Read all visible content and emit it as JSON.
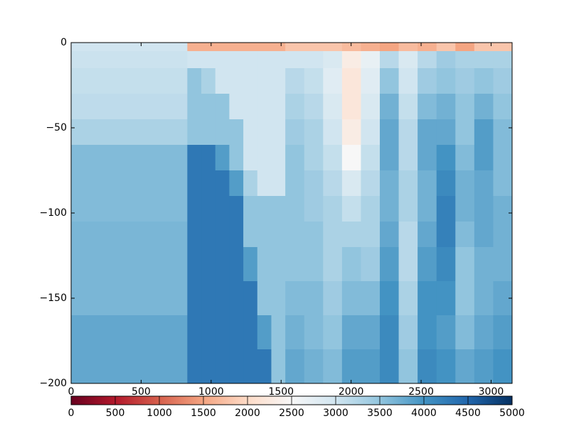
{
  "chart_data": {
    "type": "heatmap",
    "x": [
      0,
      830,
      930,
      1030,
      1130,
      1230,
      1330,
      1430,
      1530,
      1665,
      1800,
      1935,
      2070,
      2205,
      2340,
      2475,
      2610,
      2745,
      2880,
      3015,
      3150
    ],
    "y": [
      0,
      -5,
      -15,
      -30,
      -45,
      -60,
      -75,
      -90,
      -105,
      -120,
      -140,
      -160,
      -180,
      -200
    ],
    "values": [
      [
        3000,
        1600,
        1600,
        1600,
        1600,
        1600,
        1600,
        1600,
        1800,
        1800,
        1800,
        1700,
        1600,
        1500,
        1700,
        1600,
        1800,
        1500,
        1800,
        1800
      ],
      [
        3050,
        3000,
        3000,
        3000,
        3000,
        3000,
        3000,
        3000,
        3000,
        3000,
        2900,
        2300,
        2700,
        3200,
        2900,
        3200,
        3400,
        3300,
        3300,
        3300
      ],
      [
        3100,
        3500,
        3300,
        3000,
        3000,
        3000,
        3000,
        3000,
        3200,
        3100,
        2800,
        2200,
        2800,
        3500,
        3000,
        3400,
        3500,
        3400,
        3500,
        3400
      ],
      [
        3150,
        3500,
        3500,
        3500,
        3000,
        3000,
        3000,
        3000,
        3300,
        3200,
        2900,
        2200,
        2900,
        3700,
        3100,
        3600,
        3700,
        3500,
        3700,
        3500
      ],
      [
        3300,
        3500,
        3500,
        3500,
        3500,
        3000,
        3000,
        3000,
        3400,
        3300,
        3000,
        2300,
        3000,
        3800,
        3200,
        3800,
        3800,
        3500,
        3900,
        3600
      ],
      [
        3600,
        4300,
        4300,
        3900,
        3500,
        3000,
        3000,
        3000,
        3500,
        3300,
        3100,
        2500,
        3100,
        3800,
        3200,
        3800,
        4000,
        3600,
        3900,
        3600
      ],
      [
        3600,
        4300,
        4300,
        4300,
        3900,
        3300,
        3000,
        3000,
        3500,
        3400,
        3200,
        2900,
        3200,
        3700,
        3300,
        3700,
        4100,
        3700,
        3800,
        3600
      ],
      [
        3600,
        4300,
        4300,
        4300,
        4300,
        3500,
        3500,
        3500,
        3500,
        3400,
        3300,
        3100,
        3300,
        3700,
        3300,
        3700,
        4200,
        3700,
        3800,
        3700
      ],
      [
        3650,
        4300,
        4300,
        4300,
        4300,
        3500,
        3500,
        3500,
        3500,
        3500,
        3300,
        3300,
        3300,
        3800,
        3200,
        3800,
        4200,
        3600,
        3800,
        3700
      ],
      [
        3650,
        4300,
        4300,
        4300,
        4300,
        3900,
        3500,
        3500,
        3500,
        3500,
        3300,
        3500,
        3400,
        3900,
        3200,
        3900,
        4100,
        3500,
        3700,
        3700
      ],
      [
        3650,
        4300,
        4300,
        4300,
        4300,
        4300,
        3500,
        3500,
        3600,
        3600,
        3400,
        3600,
        3600,
        4000,
        3300,
        4000,
        4000,
        3500,
        3700,
        3800
      ],
      [
        3800,
        4300,
        4300,
        4300,
        4300,
        4300,
        3900,
        3500,
        3700,
        3600,
        3500,
        3800,
        3800,
        4100,
        3400,
        4000,
        3900,
        3600,
        3800,
        3900
      ],
      [
        3800,
        4300,
        4300,
        4300,
        4300,
        4300,
        4300,
        3500,
        3800,
        3700,
        3600,
        3900,
        3900,
        4100,
        3500,
        4100,
        4000,
        3800,
        3900,
        4000
      ]
    ],
    "xlim": [
      0,
      3150
    ],
    "xticks": [
      0,
      500,
      1000,
      1500,
      2000,
      2500,
      3000
    ],
    "ylim": [
      -200,
      0
    ],
    "yticks": [
      {
        "value": 0,
        "label": "0"
      },
      {
        "value": -50,
        "label": "−50"
      },
      {
        "value": -100,
        "label": "−100"
      },
      {
        "value": -150,
        "label": "−150"
      },
      {
        "value": -200,
        "label": "−200"
      }
    ],
    "colormap": [
      "#67001f",
      "#b2182b",
      "#d6604d",
      "#f4a582",
      "#fddbc7",
      "#f7f7f7",
      "#d1e5f0",
      "#92c5de",
      "#4393c3",
      "#2166ac",
      "#053061"
    ],
    "colorbar": {
      "lim": [
        0,
        5000
      ],
      "ticks": [
        0,
        500,
        1000,
        1500,
        2000,
        2500,
        3000,
        3500,
        4000,
        4500,
        5000
      ]
    }
  }
}
